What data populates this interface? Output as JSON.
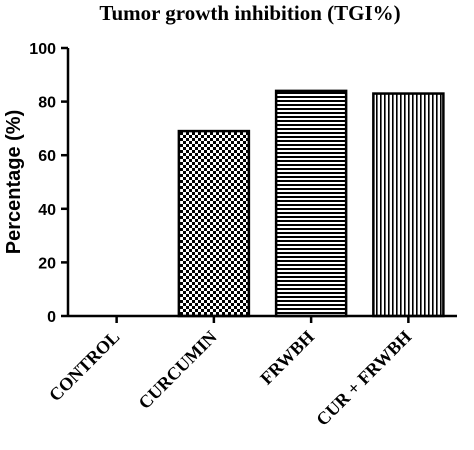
{
  "chart_data": {
    "type": "bar",
    "title": "Tumor growth inhibition (TGI%)",
    "xlabel": "",
    "ylabel": "Percentage (%)",
    "ylim": [
      0,
      100
    ],
    "yticks": [
      0,
      20,
      40,
      60,
      80,
      100
    ],
    "categories": [
      "CONTROL",
      "CURCUMIN",
      "FRWBH",
      "CUR + FRWBH"
    ],
    "values": [
      0,
      69,
      84,
      83
    ],
    "patterns": [
      "none",
      "checkerboard",
      "horizontal-stripes",
      "vertical-stripes"
    ],
    "grid": false,
    "legend": "none"
  },
  "colors": {
    "bar_edge": "#000000",
    "fill": "#ffffff",
    "axis": "#000000"
  }
}
